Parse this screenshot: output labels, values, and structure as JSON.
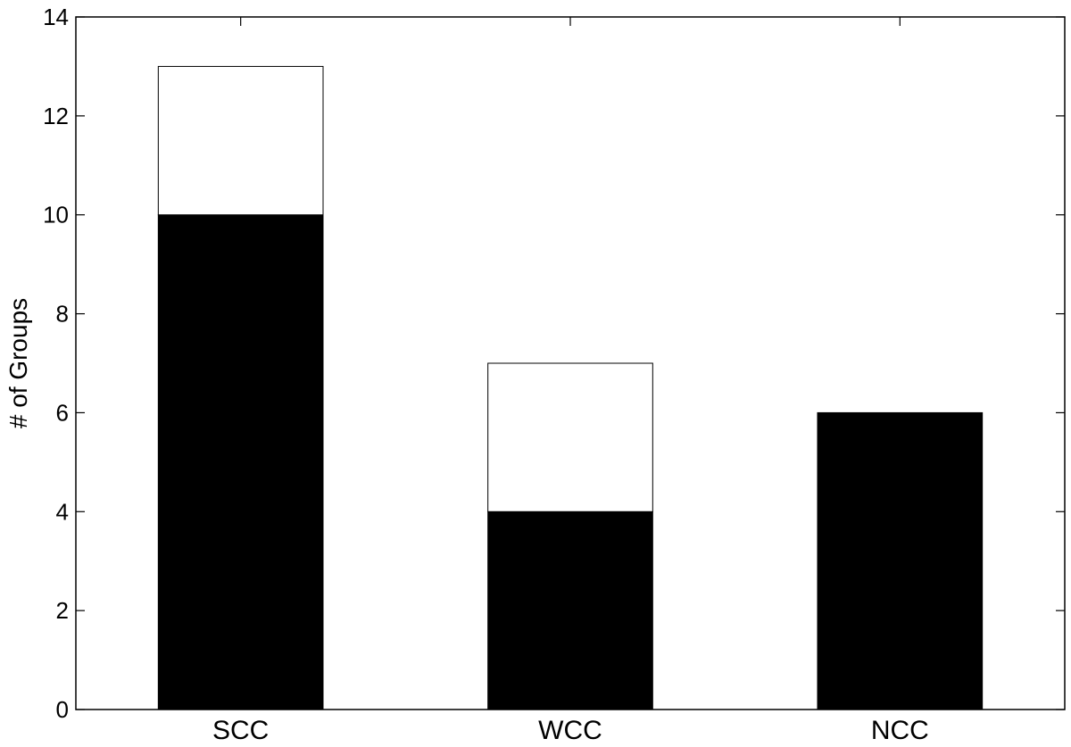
{
  "chart_data": {
    "type": "bar",
    "stacked": true,
    "categories": [
      "SCC",
      "WCC",
      "NCC"
    ],
    "series": [
      {
        "values": [
          10,
          4,
          6
        ],
        "color": "#000000"
      },
      {
        "values": [
          3,
          3,
          0
        ],
        "color": "#ffffff"
      }
    ],
    "totals": [
      13,
      7,
      6
    ],
    "title": "",
    "xlabel": "",
    "ylabel": "# of Groups",
    "ylim": [
      0,
      14
    ],
    "yticks": [
      0,
      2,
      4,
      6,
      8,
      10,
      12,
      14
    ],
    "grid": false,
    "legend": "none",
    "box": true
  }
}
